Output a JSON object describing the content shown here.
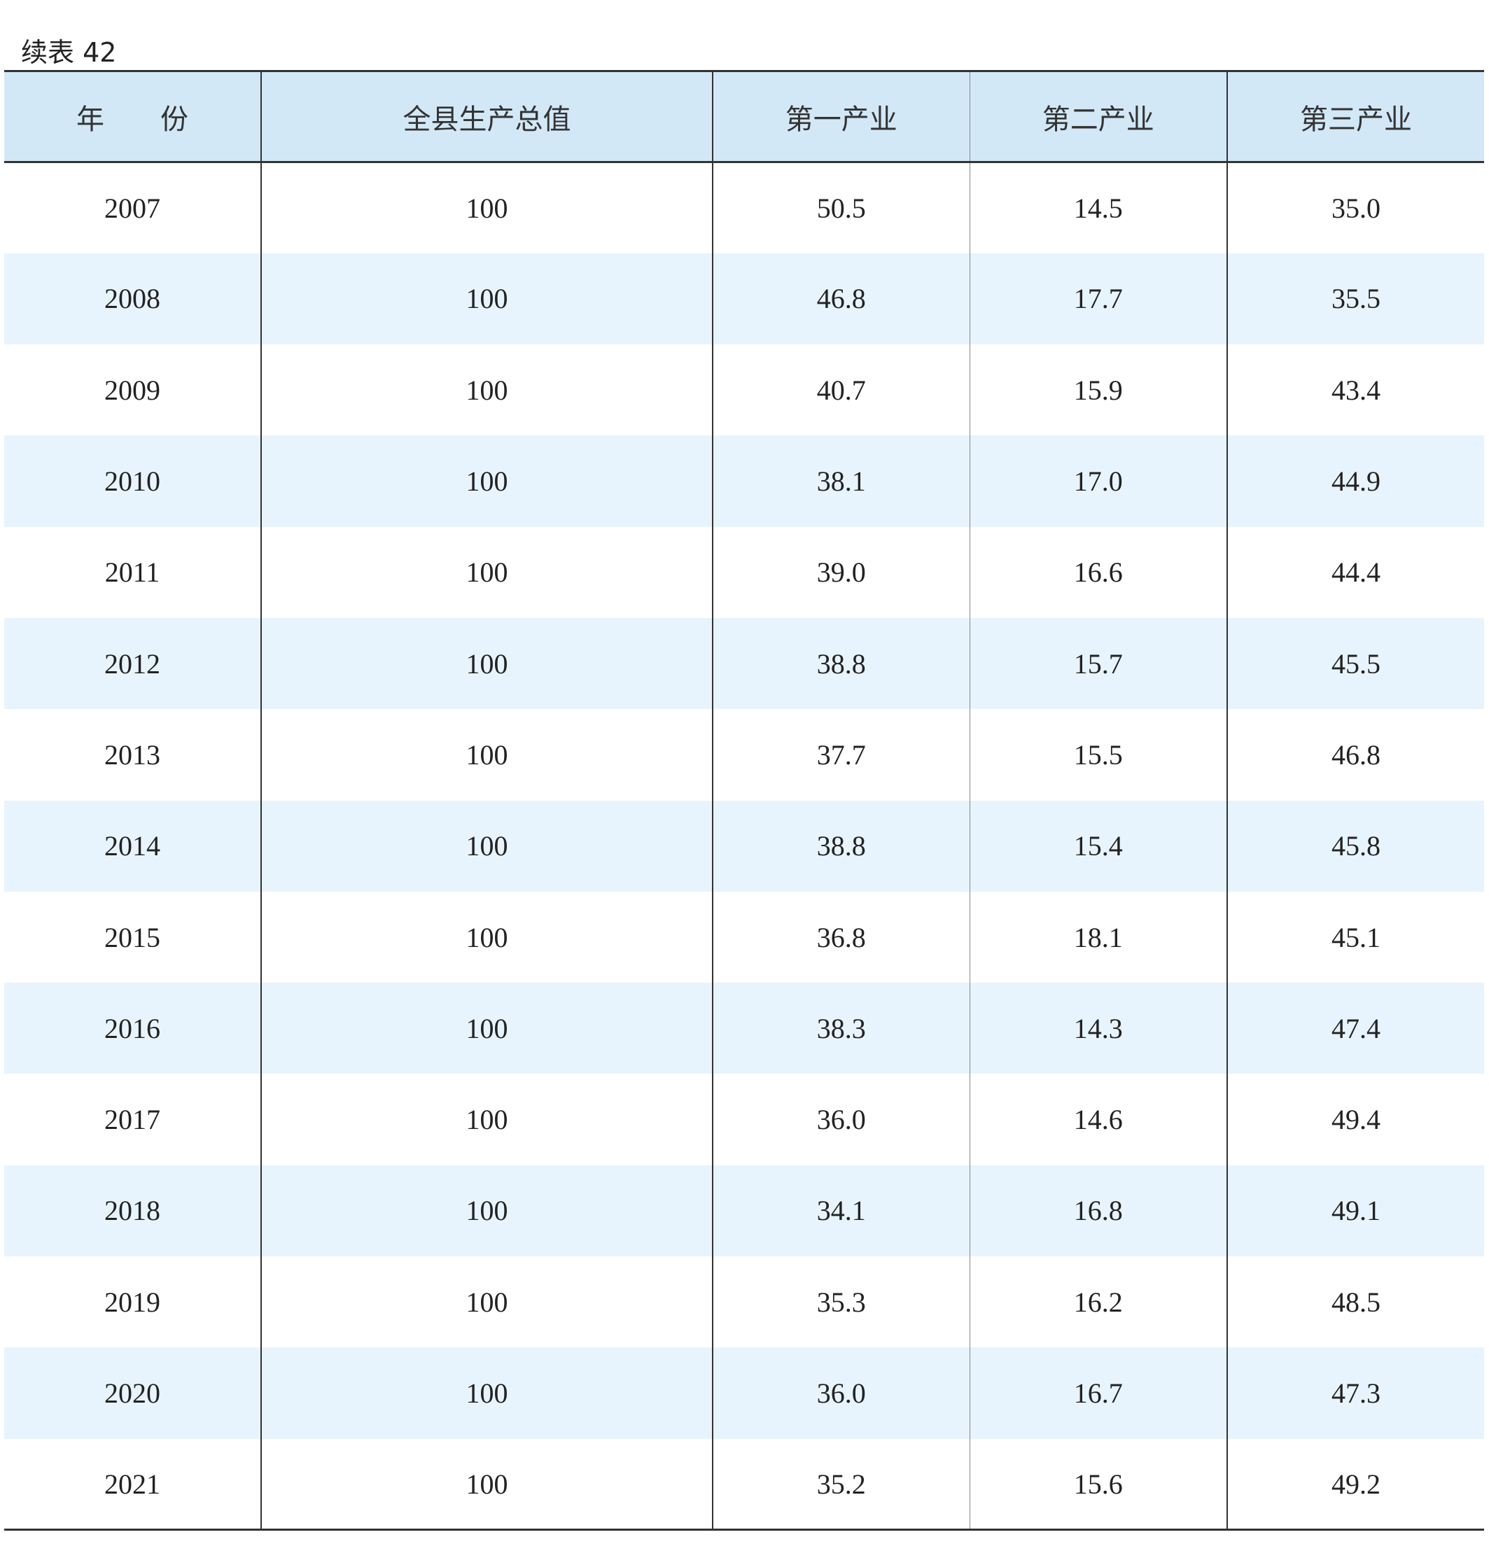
{
  "caption": "续表 42",
  "table": {
    "headers": [
      "年　　份",
      "全县生产总值",
      "第一产业",
      "第二产业",
      "第三产业"
    ],
    "rows": [
      [
        "2007",
        "100",
        "50.5",
        "14.5",
        "35.0"
      ],
      [
        "2008",
        "100",
        "46.8",
        "17.7",
        "35.5"
      ],
      [
        "2009",
        "100",
        "40.7",
        "15.9",
        "43.4"
      ],
      [
        "2010",
        "100",
        "38.1",
        "17.0",
        "44.9"
      ],
      [
        "2011",
        "100",
        "39.0",
        "16.6",
        "44.4"
      ],
      [
        "2012",
        "100",
        "38.8",
        "15.7",
        "45.5"
      ],
      [
        "2013",
        "100",
        "37.7",
        "15.5",
        "46.8"
      ],
      [
        "2014",
        "100",
        "38.8",
        "15.4",
        "45.8"
      ],
      [
        "2015",
        "100",
        "36.8",
        "18.1",
        "45.1"
      ],
      [
        "2016",
        "100",
        "38.3",
        "14.3",
        "47.4"
      ],
      [
        "2017",
        "100",
        "36.0",
        "14.6",
        "49.4"
      ],
      [
        "2018",
        "100",
        "34.1",
        "16.8",
        "49.1"
      ],
      [
        "2019",
        "100",
        "35.3",
        "16.2",
        "48.5"
      ],
      [
        "2020",
        "100",
        "36.0",
        "16.7",
        "47.3"
      ],
      [
        "2021",
        "100",
        "35.2",
        "15.6",
        "49.2"
      ]
    ]
  },
  "colors": {
    "header_bg": "#d3e8f7",
    "stripe_bg": "#e8f4fd"
  }
}
